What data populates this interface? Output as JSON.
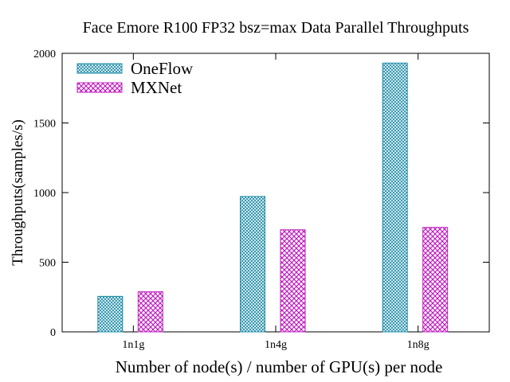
{
  "chart_data": {
    "type": "bar",
    "title": "Face Emore  R100  FP32 bsz=max Data Parallel Throughputs",
    "xlabel": "Number of node(s) / number of GPU(s) per node",
    "ylabel": "Throughputs(samples/s)",
    "categories": [
      "1n1g",
      "1n4g",
      "1n8g"
    ],
    "ylim": [
      0,
      2000
    ],
    "yticks": [
      0,
      500,
      1000,
      1500,
      2000
    ],
    "grid": false,
    "legend_position": "top-left",
    "series": [
      {
        "name": "OneFlow",
        "values": [
          255,
          972,
          1930
        ],
        "color": "#1a8aa8",
        "pattern": "crosshatch"
      },
      {
        "name": "MXNet",
        "values": [
          288,
          733,
          750
        ],
        "color": "#c020c0",
        "pattern": "checker-hatch"
      }
    ]
  }
}
